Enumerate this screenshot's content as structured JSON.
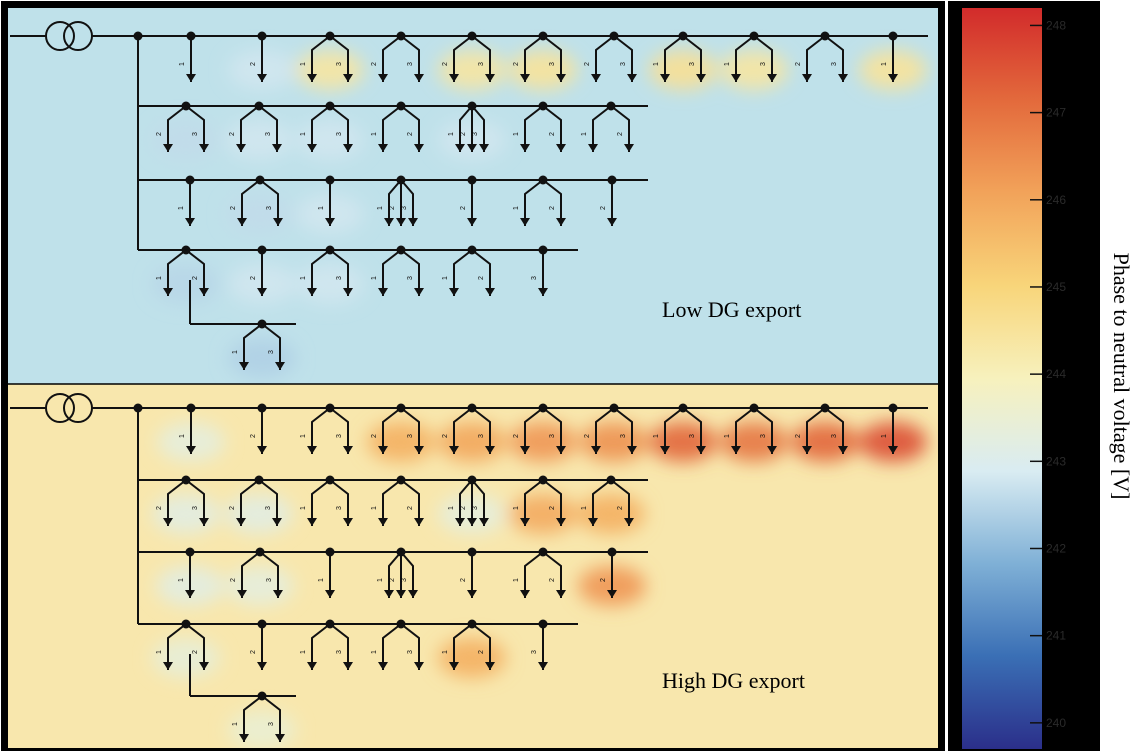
{
  "panels": [
    {
      "id": "low",
      "label": "Low DG export",
      "background": "#bfe1ea",
      "hotspots": [
        {
          "feeder": 0,
          "node": 1,
          "level": 242.8
        },
        {
          "feeder": 0,
          "node": 2,
          "level": 244.4
        },
        {
          "feeder": 0,
          "node": 4,
          "level": 244.4
        },
        {
          "feeder": 0,
          "node": 5,
          "level": 244.5
        },
        {
          "feeder": 0,
          "node": 7,
          "level": 244.6
        },
        {
          "feeder": 0,
          "node": 8,
          "level": 244.4
        },
        {
          "feeder": 0,
          "node": 10,
          "level": 244.5
        },
        {
          "feeder": 1,
          "node": 0,
          "level": 242.6
        },
        {
          "feeder": 1,
          "node": 1,
          "level": 242.8
        },
        {
          "feeder": 1,
          "node": 2,
          "level": 242.8
        },
        {
          "feeder": 1,
          "node": 4,
          "level": 242.8
        },
        {
          "feeder": 2,
          "node": 1,
          "level": 242.6
        },
        {
          "feeder": 2,
          "node": 2,
          "level": 242.8
        },
        {
          "feeder": 3,
          "node": 0,
          "level": 242.5
        },
        {
          "feeder": 3,
          "node": 1,
          "level": 242.8
        },
        {
          "feeder": 3,
          "node": 2,
          "level": 242.8
        },
        {
          "feeder": 4,
          "node": 0,
          "level": 242.4
        }
      ]
    },
    {
      "id": "high",
      "label": "High DG export",
      "background": "#f8e7ad",
      "hotspots": [
        {
          "feeder": 0,
          "node": 0,
          "level": 243.3
        },
        {
          "feeder": 0,
          "node": 3,
          "level": 245.8
        },
        {
          "feeder": 0,
          "node": 4,
          "level": 246.0
        },
        {
          "feeder": 0,
          "node": 5,
          "level": 246.3
        },
        {
          "feeder": 0,
          "node": 6,
          "level": 246.4
        },
        {
          "feeder": 0,
          "node": 7,
          "level": 247.2
        },
        {
          "feeder": 0,
          "node": 8,
          "level": 246.9
        },
        {
          "feeder": 0,
          "node": 9,
          "level": 247.2
        },
        {
          "feeder": 0,
          "node": 10,
          "level": 247.6
        },
        {
          "feeder": 1,
          "node": 0,
          "level": 243.2
        },
        {
          "feeder": 1,
          "node": 1,
          "level": 243.2
        },
        {
          "feeder": 1,
          "node": 4,
          "level": 243.3
        },
        {
          "feeder": 1,
          "node": 5,
          "level": 245.9
        },
        {
          "feeder": 1,
          "node": 6,
          "level": 245.8
        },
        {
          "feeder": 2,
          "node": 0,
          "level": 243.2
        },
        {
          "feeder": 2,
          "node": 1,
          "level": 243.3
        },
        {
          "feeder": 2,
          "node": 6,
          "level": 246.3
        },
        {
          "feeder": 3,
          "node": 0,
          "level": 243.4
        },
        {
          "feeder": 3,
          "node": 4,
          "level": 245.8
        },
        {
          "feeder": 4,
          "node": 0,
          "level": 243.5
        }
      ]
    }
  ],
  "colorbar": {
    "title": "Phase to neutral voltage [V]",
    "min": 239.7,
    "max": 248.2,
    "ticks": [
      240,
      241,
      242,
      243,
      244,
      245,
      246,
      247,
      248
    ],
    "stops": [
      "#2b2f8a",
      "#3a6fb5",
      "#7fb0d6",
      "#d9ecf2",
      "#f7f1bd",
      "#f8d57a",
      "#f2a35a",
      "#e36a3c",
      "#d22b2b"
    ]
  },
  "network": {
    "feeders": [
      {
        "id": "feeder-1",
        "nodes": [
          {
            "phases": [
              "1"
            ]
          },
          {
            "phases": [
              "2"
            ]
          },
          {
            "phases": [
              "1",
              "3"
            ]
          },
          {
            "phases": [
              "2",
              "3"
            ]
          },
          {
            "phases": [
              "2",
              "3"
            ]
          },
          {
            "phases": [
              "2",
              "3"
            ]
          },
          {
            "phases": [
              "2",
              "3"
            ]
          },
          {
            "phases": [
              "1",
              "3"
            ]
          },
          {
            "phases": [
              "1",
              "3"
            ]
          },
          {
            "phases": [
              "2",
              "3"
            ]
          },
          {
            "phases": [
              "1"
            ]
          }
        ]
      },
      {
        "id": "feeder-2",
        "nodes": [
          {
            "phases": [
              "2",
              "3"
            ]
          },
          {
            "phases": [
              "2",
              "3"
            ]
          },
          {
            "phases": [
              "1",
              "3"
            ]
          },
          {
            "phases": [
              "1",
              "2"
            ]
          },
          {
            "phases": [
              "1",
              "2",
              "3"
            ]
          },
          {
            "phases": [
              "1",
              "2"
            ]
          },
          {
            "phases": [
              "1",
              "2"
            ]
          }
        ]
      },
      {
        "id": "feeder-3",
        "nodes": [
          {
            "phases": [
              "1"
            ]
          },
          {
            "phases": [
              "2",
              "3"
            ]
          },
          {
            "phases": [
              "1"
            ]
          },
          {
            "phases": [
              "1",
              "2",
              "3"
            ]
          },
          {
            "phases": [
              "2"
            ]
          },
          {
            "phases": [
              "1",
              "2"
            ]
          },
          {
            "phases": [
              "2"
            ]
          }
        ]
      },
      {
        "id": "feeder-4",
        "nodes": [
          {
            "phases": [
              "1",
              "2"
            ]
          },
          {
            "phases": [
              "2"
            ]
          },
          {
            "phases": [
              "1",
              "3"
            ]
          },
          {
            "phases": [
              "1",
              "3"
            ]
          },
          {
            "phases": [
              "1",
              "2"
            ]
          },
          {
            "phases": [
              "3"
            ]
          }
        ]
      },
      {
        "id": "feeder-5",
        "nodes": [
          {
            "phases": [
              "1",
              "3"
            ]
          }
        ]
      }
    ]
  }
}
